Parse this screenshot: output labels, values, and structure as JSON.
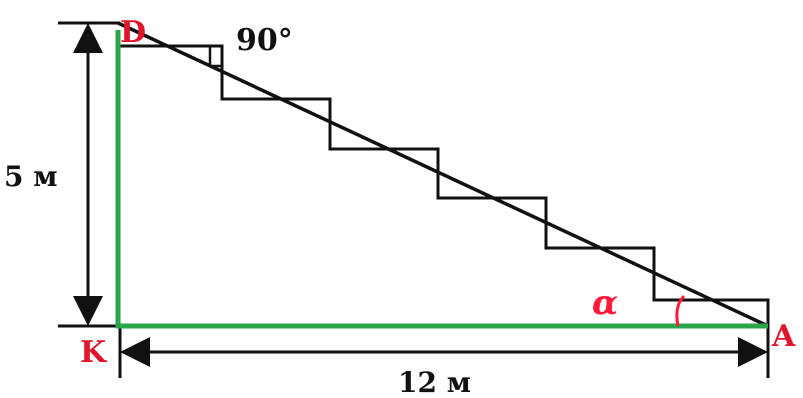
{
  "vertices": {
    "d": "D",
    "k": "K",
    "a": "A"
  },
  "dimensions": {
    "height": "5 м",
    "base": "12 м"
  },
  "angles": {
    "right_angle": "90°",
    "alpha": "α"
  },
  "colors": {
    "legs": "#2aa44a",
    "vertex_labels": "#e0142a",
    "alpha_mark": "#ff1a3a",
    "lines": "#111111"
  }
}
